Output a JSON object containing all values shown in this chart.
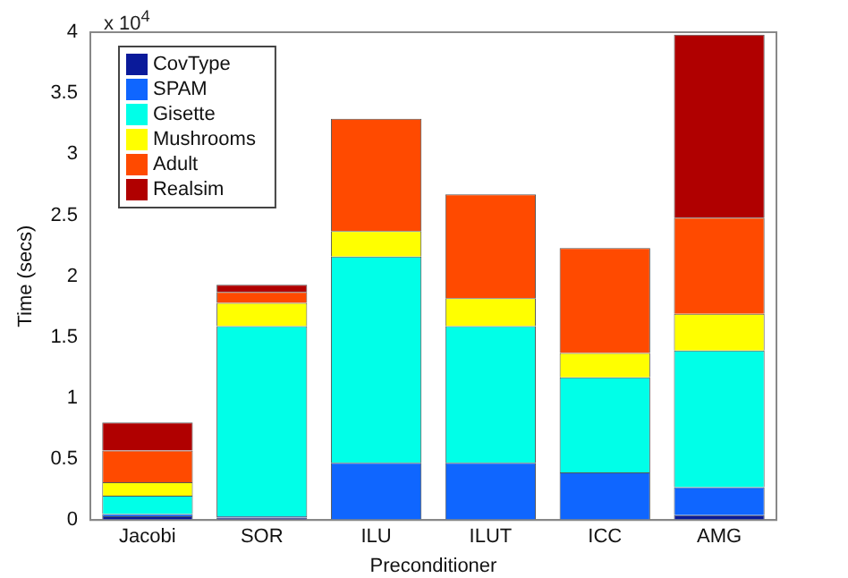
{
  "chart_data": {
    "type": "bar",
    "stacked": true,
    "xlabel": "Preconditioner",
    "ylabel": "Time (secs)",
    "annotations": [
      "x 10$^{4}$"
    ],
    "categories": [
      "Jacobi",
      "SOR",
      "ILU",
      "ILUT",
      "ICC",
      "AMG"
    ],
    "series": [
      {
        "name": "CovType",
        "color": "#0a1a9a",
        "values": [
          0.03,
          0.02,
          null,
          null,
          null,
          0.04
        ]
      },
      {
        "name": "SPAM",
        "color": "#0f66ff",
        "values": [
          0.02,
          0.01,
          0.47,
          0.47,
          0.39,
          0.23
        ]
      },
      {
        "name": "Gisette",
        "color": "#00ffe8",
        "values": [
          0.15,
          1.56,
          1.69,
          1.12,
          0.78,
          1.12
        ]
      },
      {
        "name": "Mushrooms",
        "color": "#ffff00",
        "values": [
          0.11,
          0.19,
          0.21,
          0.23,
          0.2,
          0.3
        ]
      },
      {
        "name": "Adult",
        "color": "#ff4a00",
        "values": [
          0.26,
          0.09,
          0.92,
          0.85,
          0.86,
          0.79
        ]
      },
      {
        "name": "Realsim",
        "color": "#b00000",
        "values": [
          0.23,
          0.06,
          0,
          0,
          0,
          1.5
        ]
      }
    ],
    "ylim": [
      0,
      4
    ],
    "yticks": [
      0,
      0.5,
      1,
      1.5,
      2,
      2.5,
      3,
      3.5,
      4
    ],
    "grid": false,
    "legend": "top left"
  }
}
